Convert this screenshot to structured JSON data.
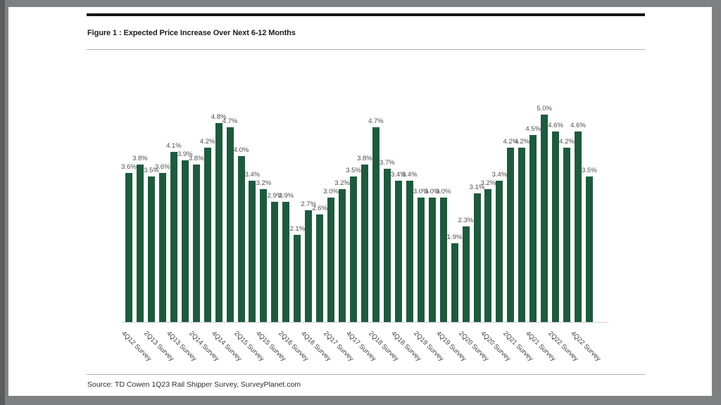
{
  "figure": {
    "title": "Figure 1 : Expected Price Increase Over Next 6-12 Months",
    "source_note": "Source: TD Cowen 1Q23 Rail Shipper Survey, SurveyPlanet.com"
  },
  "chart_data": {
    "type": "bar",
    "title": "Figure 1 : Expected Price Increase Over Next 6-12 Months",
    "bar_color": "#1d5b3d",
    "values": [
      3.6,
      3.8,
      3.5,
      3.6,
      4.1,
      3.9,
      3.8,
      4.2,
      4.8,
      4.7,
      4.0,
      3.4,
      3.2,
      2.9,
      2.9,
      2.1,
      2.7,
      2.6,
      3.0,
      3.2,
      3.5,
      3.8,
      4.7,
      3.7,
      3.4,
      3.4,
      3.0,
      3.0,
      3.0,
      1.9,
      2.3,
      3.1,
      3.2,
      3.4,
      4.2,
      4.2,
      4.5,
      5.0,
      4.6,
      4.2,
      4.6,
      3.5
    ],
    "labels": [
      "3.6%",
      "3.8%",
      "3.5%",
      "3.6%",
      "4.1%",
      "3.9%",
      "3.8%",
      "4.2%",
      "4.8%",
      "4.7%",
      "4.0%",
      "3.4%",
      "3.2%",
      "2.9%",
      "2.9%",
      "2.1%",
      "2.7%",
      "2.6%",
      "3.0%",
      "3.2%",
      "3.5%",
      "3.8%",
      "4.7%",
      "3.7%",
      "3.4%",
      "3.4%",
      "3.0%",
      "3.0%",
      "3.0%",
      "1.9%",
      "2.3%",
      "3.1%",
      "3.2%",
      "3.4%",
      "4.2%",
      "4.2%",
      "4.5%",
      "5.0%",
      "4.6%",
      "4.2%",
      "4.6%",
      "3.5%"
    ],
    "axis_labels": [
      "4Q12 Survey",
      "2Q13 Survey",
      "4Q13 Survey",
      "2Q14 Survey",
      "4Q14 Survey",
      "2Q15 Survey",
      "4Q15 Survey",
      "2Q16 Survey",
      "4Q16 Survey",
      "2Q17 Survey",
      "4Q17 Survey",
      "2Q18 Survey",
      "4Q18 Survey",
      "2Q19 Survey",
      "4Q19 Survey",
      "2Q20 Survey",
      "4Q20 Survey",
      "2Q21 Survey",
      "4Q21 Survey",
      "2Q22 Survey",
      "4Q22 Survey"
    ],
    "axis_label_every_n_bars": 2,
    "x_tick_rotation_deg": 45,
    "value_label_position": "above-bars",
    "ylim": [
      0,
      5.0
    ],
    "grid": false,
    "legend": false
  }
}
